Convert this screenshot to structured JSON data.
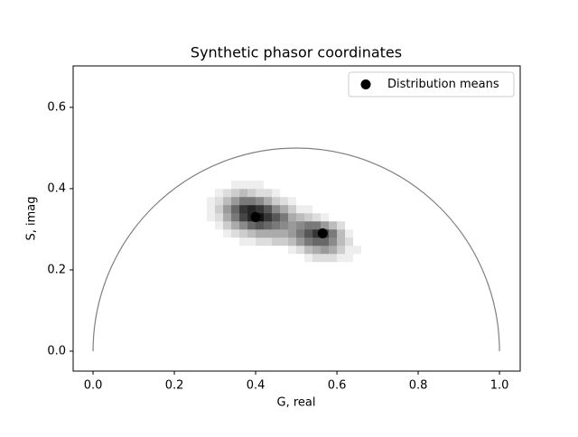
{
  "chart_data": {
    "type": "phasor",
    "title": "Synthetic phasor coordinates",
    "xlabel": "G, real",
    "ylabel": "S, imag",
    "xlim": [
      -0.049,
      1.051
    ],
    "ylim": [
      -0.049,
      0.702
    ],
    "xticks": [
      {
        "value": 0,
        "label": "0.0"
      },
      0.2,
      0.4,
      0.6,
      0.8,
      {
        "value": 1,
        "label": "1.0"
      }
    ],
    "yticks": [
      {
        "value": 0,
        "label": "0.0"
      },
      0.2,
      0.4,
      0.6
    ],
    "semicircle": {
      "center": [
        0.5,
        0
      ],
      "radius": 0.5,
      "color": "#808080"
    },
    "histogram2d": {
      "cmap": "Greys",
      "xbins": [
        0.28,
        0.3,
        0.32,
        0.34,
        0.36,
        0.38,
        0.4,
        0.42,
        0.44,
        0.46,
        0.48,
        0.5,
        0.52,
        0.54,
        0.56,
        0.58,
        0.6,
        0.62,
        0.64,
        0.66,
        0.68
      ],
      "ybins": [
        0.22,
        0.24,
        0.26,
        0.28,
        0.3,
        0.32,
        0.34,
        0.36,
        0.38,
        0.4,
        0.42
      ],
      "counts": [
        [
          0,
          0,
          0,
          0,
          0,
          0,
          0,
          0,
          0,
          0,
          0,
          0,
          1,
          2,
          2,
          2,
          1,
          1,
          0,
          0
        ],
        [
          0,
          0,
          0,
          0,
          0,
          0,
          0,
          0,
          0,
          0,
          1,
          2,
          4,
          5,
          6,
          5,
          3,
          1,
          1,
          0
        ],
        [
          0,
          0,
          0,
          0,
          1,
          1,
          2,
          2,
          3,
          3,
          4,
          6,
          8,
          9,
          9,
          7,
          4,
          2,
          0,
          0
        ],
        [
          0,
          0,
          1,
          2,
          3,
          4,
          5,
          5,
          5,
          5,
          6,
          8,
          10,
          12,
          11,
          8,
          4,
          1,
          0,
          0
        ],
        [
          0,
          1,
          3,
          5,
          7,
          9,
          10,
          9,
          8,
          7,
          6,
          7,
          8,
          8,
          6,
          4,
          2,
          0,
          0,
          0
        ],
        [
          1,
          2,
          5,
          8,
          11,
          13,
          14,
          12,
          10,
          8,
          5,
          4,
          3,
          2,
          1,
          0,
          0,
          0,
          0,
          0
        ],
        [
          1,
          3,
          6,
          9,
          12,
          13,
          12,
          10,
          7,
          5,
          3,
          1,
          1,
          0,
          0,
          0,
          0,
          0,
          0,
          0
        ],
        [
          1,
          2,
          4,
          6,
          8,
          8,
          7,
          5,
          3,
          2,
          1,
          0,
          0,
          0,
          0,
          0,
          0,
          0,
          0,
          0
        ],
        [
          0,
          1,
          2,
          3,
          4,
          3,
          2,
          2,
          1,
          0,
          0,
          0,
          0,
          0,
          0,
          0,
          0,
          0,
          0,
          0
        ],
        [
          0,
          0,
          0,
          1,
          1,
          1,
          1,
          0,
          0,
          0,
          0,
          0,
          0,
          0,
          0,
          0,
          0,
          0,
          0,
          0
        ]
      ]
    },
    "series": [
      {
        "name": "Distribution means",
        "color": "#000000",
        "x": [
          0.4,
          0.565
        ],
        "values": [
          0.33,
          0.29
        ]
      }
    ],
    "legend": "upper right"
  }
}
